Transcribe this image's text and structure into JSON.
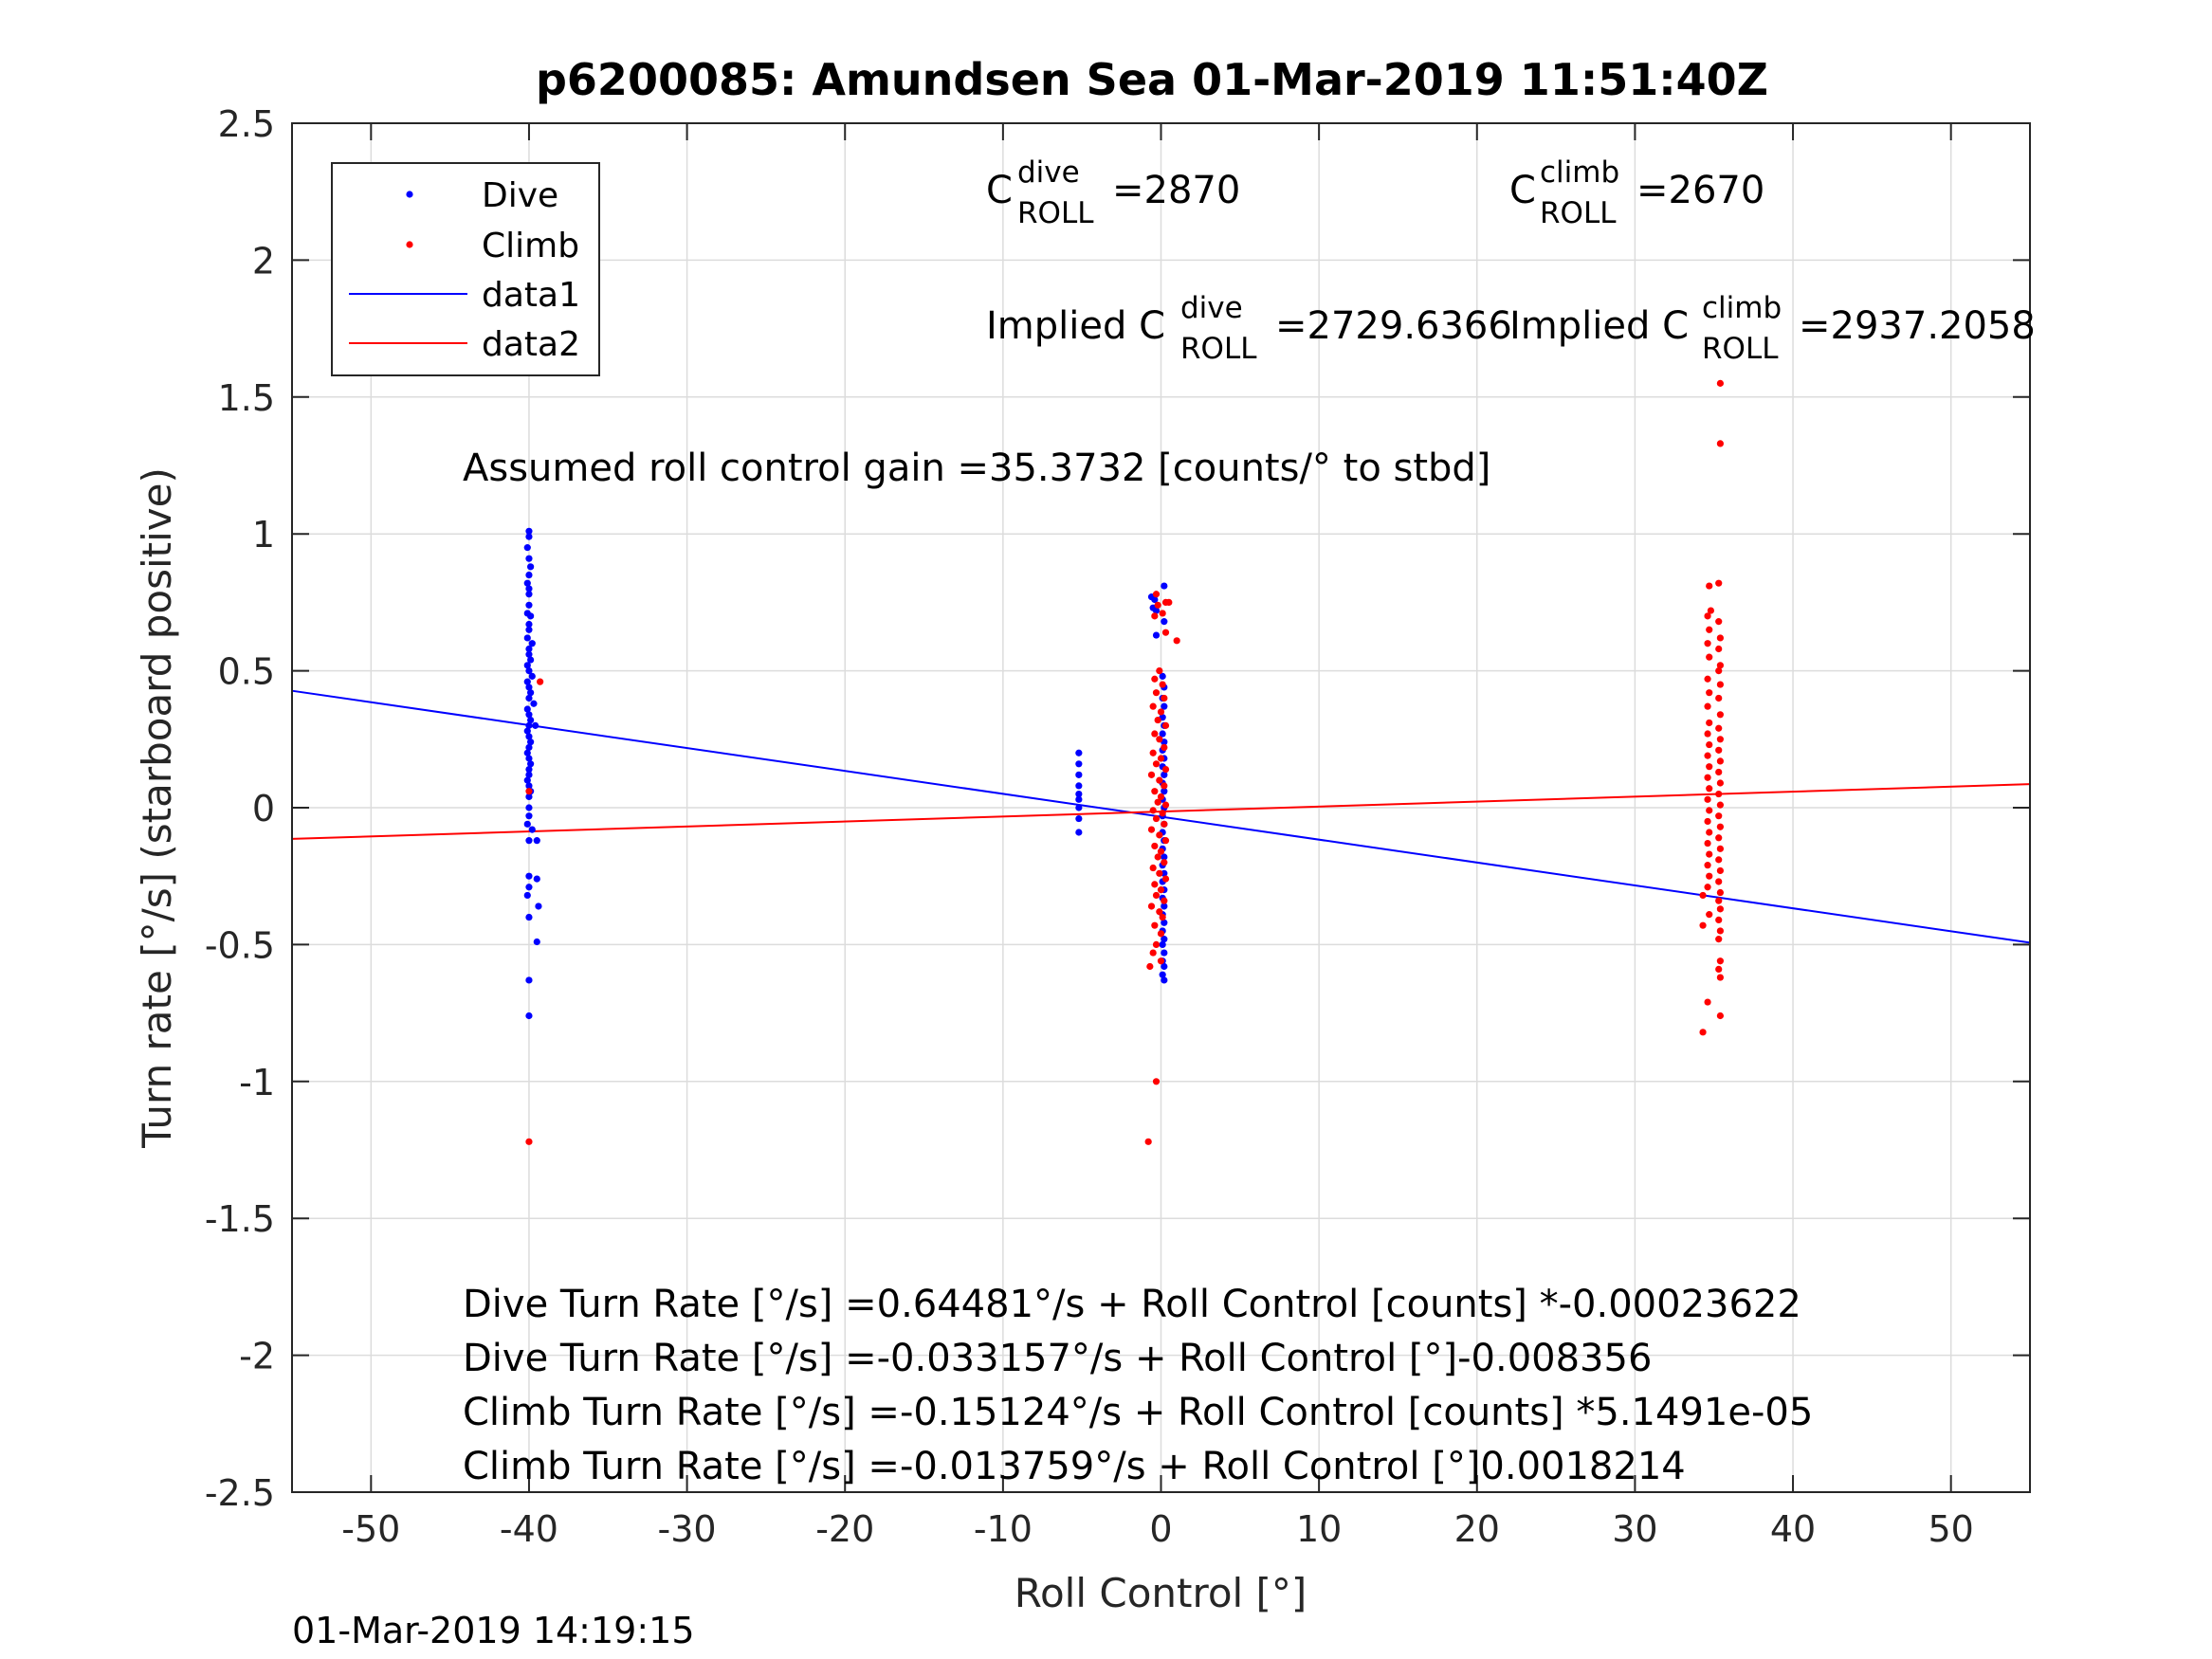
{
  "chart_data": {
    "type": "scatter",
    "title": "p6200085: Amundsen Sea 01-Mar-2019 11:51:40Z",
    "xlabel": "Roll Control [°]",
    "ylabel": "Turn rate [°/s] (starboard positive)",
    "xlim": [
      -55,
      55
    ],
    "ylim": [
      -2.5,
      2.5
    ],
    "xticks": [
      -50,
      -40,
      -30,
      -20,
      -10,
      0,
      10,
      20,
      30,
      40,
      50
    ],
    "xtick_labels": [
      "-50",
      "-40",
      "-30",
      "-20",
      "-10",
      "0",
      "10",
      "20",
      "30",
      "40",
      "50"
    ],
    "yticks": [
      2.5,
      2,
      1.5,
      1,
      0.5,
      0,
      -0.5,
      -1,
      -1.5,
      -2,
      -2.5
    ],
    "ytick_labels": [
      "2.5",
      "2",
      "1.5",
      "1",
      "0.5",
      "0",
      "-0.5",
      "-1",
      "-1.5",
      "-2",
      "-2.5"
    ],
    "grid": true,
    "legend_position": "top-left",
    "legend": [
      "Dive",
      "Climb",
      "data1",
      "data2"
    ],
    "colors": {
      "dive": "#0000ff",
      "climb": "#ff0000",
      "fit_dive": "#0000ff",
      "fit_climb": "#ff0000",
      "grid": "#dcdcdc",
      "axes": "#262626"
    },
    "series": [
      {
        "name": "Dive",
        "kind": "points",
        "points": [
          [
            -40,
            1.01
          ],
          [
            -40,
            0.99
          ],
          [
            -40.1,
            0.95
          ],
          [
            -40,
            0.91
          ],
          [
            -39.9,
            0.88
          ],
          [
            -40,
            0.85
          ],
          [
            -40.1,
            0.82
          ],
          [
            -40,
            0.8
          ],
          [
            -40,
            0.78
          ],
          [
            -40,
            0.74
          ],
          [
            -40.1,
            0.71
          ],
          [
            -39.9,
            0.7
          ],
          [
            -40,
            0.67
          ],
          [
            -40,
            0.65
          ],
          [
            -40.1,
            0.62
          ],
          [
            -39.8,
            0.6
          ],
          [
            -40,
            0.58
          ],
          [
            -40,
            0.56
          ],
          [
            -39.9,
            0.54
          ],
          [
            -40.1,
            0.52
          ],
          [
            -40,
            0.5
          ],
          [
            -39.8,
            0.48
          ],
          [
            -40.1,
            0.46
          ],
          [
            -40,
            0.44
          ],
          [
            -39.9,
            0.42
          ],
          [
            -40,
            0.4
          ],
          [
            -39.7,
            0.38
          ],
          [
            -40.1,
            0.36
          ],
          [
            -40,
            0.34
          ],
          [
            -39.9,
            0.32
          ],
          [
            -40,
            0.3
          ],
          [
            -39.6,
            0.3
          ],
          [
            -40.1,
            0.28
          ],
          [
            -40,
            0.26
          ],
          [
            -39.9,
            0.24
          ],
          [
            -40,
            0.22
          ],
          [
            -40.1,
            0.2
          ],
          [
            -40,
            0.18
          ],
          [
            -39.9,
            0.16
          ],
          [
            -40,
            0.14
          ],
          [
            -40,
            0.12
          ],
          [
            -40.1,
            0.1
          ],
          [
            -40,
            0.08
          ],
          [
            -39.9,
            0.06
          ],
          [
            -40,
            0.04
          ],
          [
            -40,
            0.0
          ],
          [
            -40,
            -0.03
          ],
          [
            -40.1,
            -0.06
          ],
          [
            -39.8,
            -0.08
          ],
          [
            -40,
            -0.12
          ],
          [
            -39.5,
            -0.12
          ],
          [
            -40,
            -0.25
          ],
          [
            -39.5,
            -0.26
          ],
          [
            -40,
            -0.29
          ],
          [
            -40.1,
            -0.32
          ],
          [
            -39.4,
            -0.36
          ],
          [
            -40,
            -0.4
          ],
          [
            -39.5,
            -0.49
          ],
          [
            -40,
            -0.63
          ],
          [
            -40,
            -0.76
          ],
          [
            -5.2,
            0.2
          ],
          [
            -5.2,
            0.16
          ],
          [
            -5.2,
            0.12
          ],
          [
            -5.2,
            0.08
          ],
          [
            -5.2,
            0.05
          ],
          [
            -5.2,
            0.03
          ],
          [
            -5.2,
            0.0
          ],
          [
            -5.2,
            -0.04
          ],
          [
            -5.2,
            -0.09
          ],
          [
            0.2,
            0.81
          ],
          [
            -0.6,
            0.77
          ],
          [
            -0.4,
            0.76
          ],
          [
            -0.5,
            0.73
          ],
          [
            -0.3,
            0.72
          ],
          [
            0.2,
            0.68
          ],
          [
            -0.3,
            0.63
          ],
          [
            0.1,
            0.48
          ],
          [
            0.2,
            0.44
          ],
          [
            0.1,
            0.4
          ],
          [
            0.2,
            0.37
          ],
          [
            0.1,
            0.33
          ],
          [
            0.2,
            0.3
          ],
          [
            0.1,
            0.27
          ],
          [
            0.2,
            0.24
          ],
          [
            0.1,
            0.21
          ],
          [
            0.2,
            0.18
          ],
          [
            0.1,
            0.15
          ],
          [
            0.2,
            0.12
          ],
          [
            0.1,
            0.09
          ],
          [
            0.2,
            0.06
          ],
          [
            0.1,
            0.03
          ],
          [
            0.2,
            0.0
          ],
          [
            0.1,
            -0.03
          ],
          [
            0.2,
            -0.06
          ],
          [
            0.1,
            -0.09
          ],
          [
            0.2,
            -0.12
          ],
          [
            0.1,
            -0.15
          ],
          [
            0.2,
            -0.18
          ],
          [
            0.1,
            -0.21
          ],
          [
            0.2,
            -0.24
          ],
          [
            0.1,
            -0.27
          ],
          [
            0.2,
            -0.3
          ],
          [
            0.1,
            -0.33
          ],
          [
            0.2,
            -0.36
          ],
          [
            0.1,
            -0.39
          ],
          [
            0.2,
            -0.42
          ],
          [
            0.1,
            -0.45
          ],
          [
            0.2,
            -0.48
          ],
          [
            0.1,
            -0.5
          ],
          [
            0.2,
            -0.53
          ],
          [
            0.1,
            -0.56
          ],
          [
            0.2,
            -0.58
          ],
          [
            0.1,
            -0.61
          ],
          [
            0.2,
            -0.63
          ]
        ]
      },
      {
        "name": "Climb",
        "kind": "points",
        "points": [
          [
            -39.3,
            0.46
          ],
          [
            -40,
            0.06
          ],
          [
            -40,
            -1.22
          ],
          [
            -0.3,
            0.78
          ],
          [
            -0.2,
            0.74
          ],
          [
            0.3,
            0.75
          ],
          [
            0.5,
            0.75
          ],
          [
            0.1,
            0.71
          ],
          [
            -0.4,
            0.7
          ],
          [
            0.3,
            0.64
          ],
          [
            1.0,
            0.61
          ],
          [
            -0.1,
            0.5
          ],
          [
            -0.4,
            0.47
          ],
          [
            0.1,
            0.45
          ],
          [
            -0.3,
            0.42
          ],
          [
            0.2,
            0.4
          ],
          [
            -0.5,
            0.37
          ],
          [
            0.0,
            0.35
          ],
          [
            -0.2,
            0.32
          ],
          [
            0.3,
            0.3
          ],
          [
            -0.4,
            0.27
          ],
          [
            -0.1,
            0.25
          ],
          [
            0.2,
            0.22
          ],
          [
            -0.5,
            0.2
          ],
          [
            0.0,
            0.18
          ],
          [
            -0.3,
            0.16
          ],
          [
            0.3,
            0.14
          ],
          [
            -0.6,
            0.12
          ],
          [
            -0.1,
            0.1
          ],
          [
            0.2,
            0.08
          ],
          [
            -0.4,
            0.06
          ],
          [
            0.0,
            0.04
          ],
          [
            -0.2,
            0.02
          ],
          [
            0.3,
            0.01
          ],
          [
            -0.5,
            -0.01
          ],
          [
            0.1,
            -0.02
          ],
          [
            -0.3,
            -0.04
          ],
          [
            0.2,
            -0.06
          ],
          [
            -0.6,
            -0.08
          ],
          [
            -0.1,
            -0.1
          ],
          [
            0.3,
            -0.12
          ],
          [
            -0.4,
            -0.14
          ],
          [
            0.0,
            -0.16
          ],
          [
            -0.2,
            -0.18
          ],
          [
            0.2,
            -0.2
          ],
          [
            -0.5,
            -0.22
          ],
          [
            -0.1,
            -0.24
          ],
          [
            0.3,
            -0.26
          ],
          [
            -0.4,
            -0.28
          ],
          [
            0.0,
            -0.3
          ],
          [
            -0.3,
            -0.32
          ],
          [
            0.2,
            -0.34
          ],
          [
            -0.6,
            -0.36
          ],
          [
            -0.1,
            -0.38
          ],
          [
            0.1,
            -0.4
          ],
          [
            -0.4,
            -0.43
          ],
          [
            0.0,
            -0.46
          ],
          [
            -0.3,
            -0.5
          ],
          [
            -0.5,
            -0.53
          ],
          [
            0.0,
            -0.56
          ],
          [
            -0.7,
            -0.58
          ],
          [
            -0.3,
            -1.0
          ],
          [
            -0.8,
            -1.22
          ],
          [
            35.4,
            1.55
          ],
          [
            35.4,
            1.33
          ],
          [
            35.3,
            0.82
          ],
          [
            34.7,
            0.81
          ],
          [
            34.8,
            0.72
          ],
          [
            34.6,
            0.7
          ],
          [
            35.3,
            0.68
          ],
          [
            34.7,
            0.65
          ],
          [
            35.4,
            0.62
          ],
          [
            34.6,
            0.6
          ],
          [
            35.3,
            0.58
          ],
          [
            34.7,
            0.55
          ],
          [
            35.4,
            0.52
          ],
          [
            35.3,
            0.5
          ],
          [
            34.6,
            0.47
          ],
          [
            35.4,
            0.45
          ],
          [
            34.7,
            0.42
          ],
          [
            35.3,
            0.4
          ],
          [
            34.6,
            0.37
          ],
          [
            35.4,
            0.34
          ],
          [
            34.7,
            0.31
          ],
          [
            35.3,
            0.29
          ],
          [
            34.6,
            0.27
          ],
          [
            35.4,
            0.25
          ],
          [
            34.7,
            0.23
          ],
          [
            35.3,
            0.21
          ],
          [
            34.6,
            0.19
          ],
          [
            35.4,
            0.17
          ],
          [
            34.7,
            0.15
          ],
          [
            35.3,
            0.13
          ],
          [
            34.6,
            0.11
          ],
          [
            35.4,
            0.09
          ],
          [
            34.7,
            0.07
          ],
          [
            35.3,
            0.05
          ],
          [
            34.6,
            0.03
          ],
          [
            35.4,
            0.01
          ],
          [
            34.7,
            -0.01
          ],
          [
            35.3,
            -0.03
          ],
          [
            34.6,
            -0.05
          ],
          [
            35.4,
            -0.07
          ],
          [
            34.7,
            -0.09
          ],
          [
            35.3,
            -0.11
          ],
          [
            34.6,
            -0.13
          ],
          [
            35.4,
            -0.15
          ],
          [
            34.7,
            -0.17
          ],
          [
            35.3,
            -0.19
          ],
          [
            34.6,
            -0.21
          ],
          [
            35.4,
            -0.23
          ],
          [
            34.7,
            -0.25
          ],
          [
            35.3,
            -0.27
          ],
          [
            34.6,
            -0.29
          ],
          [
            35.4,
            -0.31
          ],
          [
            34.3,
            -0.32
          ],
          [
            35.3,
            -0.34
          ],
          [
            35.4,
            -0.37
          ],
          [
            34.7,
            -0.39
          ],
          [
            35.3,
            -0.41
          ],
          [
            34.3,
            -0.43
          ],
          [
            35.4,
            -0.45
          ],
          [
            35.3,
            -0.48
          ],
          [
            35.4,
            -0.56
          ],
          [
            35.3,
            -0.59
          ],
          [
            35.4,
            -0.62
          ],
          [
            34.6,
            -0.71
          ],
          [
            35.4,
            -0.76
          ],
          [
            34.3,
            -0.82
          ]
        ]
      },
      {
        "name": "data1",
        "kind": "line",
        "x": [
          -55,
          55
        ],
        "y": [
          0.427,
          -0.493
        ]
      },
      {
        "name": "data2",
        "kind": "line",
        "x": [
          -55,
          55
        ],
        "y": [
          -0.114,
          0.086
        ]
      }
    ],
    "annotations": {
      "c_dive": {
        "sub": "ROLL",
        "sup": "dive",
        "value": "=2870"
      },
      "c_climb": {
        "sub": "ROLL",
        "sup": "climb",
        "value": "=2670"
      },
      "implied_dive": {
        "prefix": "Implied C",
        "sub": "ROLL",
        "sup": "dive",
        "value": "=2729.6366"
      },
      "implied_climb": {
        "prefix": "Implied C",
        "sub": "ROLL",
        "sup": "climb",
        "value": "=2937.2058"
      },
      "C": "C",
      "gain": "Assumed roll control gain =35.3732 [counts/° to stbd]",
      "eq1": "Dive Turn Rate [°/s] =0.64481°/s + Roll Control [counts] *-0.00023622",
      "eq2": "Dive Turn Rate [°/s] =-0.033157°/s + Roll Control [°]-0.008356",
      "eq3": "Climb Turn Rate [°/s] =-0.15124°/s + Roll Control [counts] *5.1491e-05",
      "eq4": "Climb Turn Rate [°/s] =-0.013759°/s + Roll Control [°]0.0018214"
    }
  },
  "timestamp": "01-Mar-2019 14:19:15"
}
